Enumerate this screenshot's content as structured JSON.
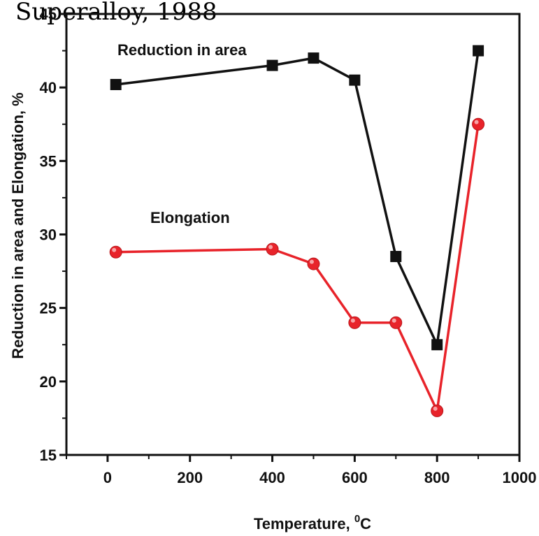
{
  "chart_data": {
    "type": "line",
    "title": "Superalloy, 1988",
    "xlabel": "Temperature, ",
    "xlabel_unit": "C",
    "xlabel_superscript": "0",
    "ylabel": "Reduction in area and Elongation, %",
    "xlim": [
      -100,
      1000
    ],
    "ylim": [
      15,
      45
    ],
    "x_ticks": [
      0,
      200,
      400,
      600,
      800,
      1000
    ],
    "y_ticks": [
      15,
      20,
      25,
      30,
      35,
      40,
      45
    ],
    "grid": false,
    "legend": "none",
    "series": [
      {
        "name": "Reduction in area",
        "color": "#111111",
        "marker": "square",
        "x": [
          20,
          400,
          500,
          600,
          700,
          800,
          900
        ],
        "y": [
          40.2,
          41.5,
          42.0,
          40.5,
          28.5,
          22.5,
          42.5
        ]
      },
      {
        "name": "Elongation",
        "color": "#e8232a",
        "marker": "circle",
        "x": [
          20,
          400,
          500,
          600,
          700,
          800,
          900
        ],
        "y": [
          28.8,
          29.0,
          28.0,
          24.0,
          24.0,
          18.0,
          37.5
        ]
      }
    ]
  }
}
